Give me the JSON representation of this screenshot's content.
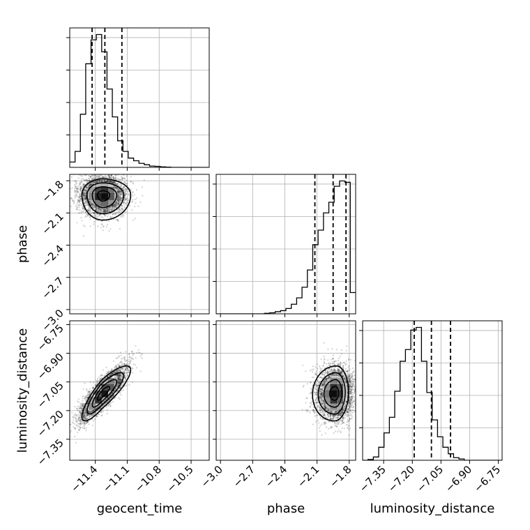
{
  "chart_data": {
    "type": "corner",
    "parameters": [
      {
        "name": "geocent_time",
        "label": "geocent_time",
        "range": [
          -11.64,
          -10.33
        ],
        "ticks": [
          -11.4,
          -11.1,
          -10.8,
          -10.5
        ],
        "tick_labels": [
          "−11.4",
          "−11.1",
          "−10.8",
          "−10.5"
        ],
        "quantiles": [
          -11.43,
          -11.31,
          -11.15
        ],
        "histogram": {
          "edges_start": -11.64,
          "bin_width": 0.05,
          "counts": [
            0.04,
            0.12,
            0.4,
            0.78,
            0.96,
            1.0,
            0.87,
            0.59,
            0.38,
            0.2,
            0.12,
            0.07,
            0.05,
            0.03,
            0.02,
            0.01,
            0.008,
            0.004,
            0.002,
            0.0,
            0.0,
            0.0,
            0.0,
            0.0,
            0.0,
            0.0
          ]
        }
      },
      {
        "name": "phase",
        "label": "phase",
        "range": [
          -3.04,
          -1.74
        ],
        "ticks": [
          -3.0,
          -2.7,
          -2.4,
          -2.1,
          -1.8
        ],
        "tick_labels": [
          "−3.0",
          "−2.7",
          "−2.4",
          "−2.1",
          "−1.8"
        ],
        "quantiles": [
          -2.12,
          -1.95,
          -1.83
        ],
        "histogram": {
          "edges_start": -3.04,
          "bin_width": 0.05,
          "counts": [
            0.0,
            0.0,
            0.0,
            0.0,
            0.0,
            0.0,
            0.0,
            0.0,
            0.0,
            0.004,
            0.008,
            0.016,
            0.024,
            0.04,
            0.072,
            0.12,
            0.2,
            0.33,
            0.52,
            0.63,
            0.76,
            0.84,
            0.96,
            1.0,
            0.99,
            0.16
          ]
        }
      },
      {
        "name": "luminosity_distance",
        "label": "luminosity_distance",
        "range": [
          -7.46,
          -6.73
        ],
        "ticks": [
          -7.35,
          -7.2,
          -7.05,
          -6.9,
          -6.75
        ],
        "tick_labels": [
          "−7.35",
          "−7.20",
          "−7.05",
          "−6.90",
          "−6.75"
        ],
        "quantiles": [
          -7.19,
          -7.1,
          -7.0
        ],
        "histogram": {
          "edges_start": -7.46,
          "bin_width": 0.028,
          "counts": [
            0.0,
            0.006,
            0.025,
            0.1,
            0.21,
            0.33,
            0.53,
            0.76,
            0.85,
            1.0,
            1.02,
            0.76,
            0.52,
            0.31,
            0.18,
            0.1,
            0.05,
            0.02,
            0.01,
            0.0,
            0.0,
            0.0,
            0.0,
            0.0,
            0.0,
            0.0
          ]
        }
      }
    ],
    "pairs": [
      {
        "x": "geocent_time",
        "y": "phase",
        "mean": [
          -11.33,
          -1.93
        ],
        "sigma": [
          0.11,
          0.09
        ],
        "correlation": 0.0,
        "skew": [
          0.55,
          -0.9
        ]
      },
      {
        "x": "geocent_time",
        "y": "luminosity_distance",
        "mean": [
          -11.33,
          -7.11
        ],
        "sigma": [
          0.11,
          0.072
        ],
        "correlation": 0.85,
        "skew": [
          0.55,
          0.0
        ]
      },
      {
        "x": "phase",
        "y": "luminosity_distance",
        "mean": [
          -1.93,
          -7.11
        ],
        "sigma": [
          0.09,
          0.072
        ],
        "correlation": 0.05,
        "skew": [
          -0.9,
          0.0
        ]
      }
    ],
    "contour_levels_sigma": [
      0.5,
      1.0,
      1.5,
      2.0
    ],
    "grid": true,
    "colors": {
      "line": "#000000",
      "grid": "#b0b0b0",
      "points": "#000000",
      "density": "#000000"
    }
  }
}
